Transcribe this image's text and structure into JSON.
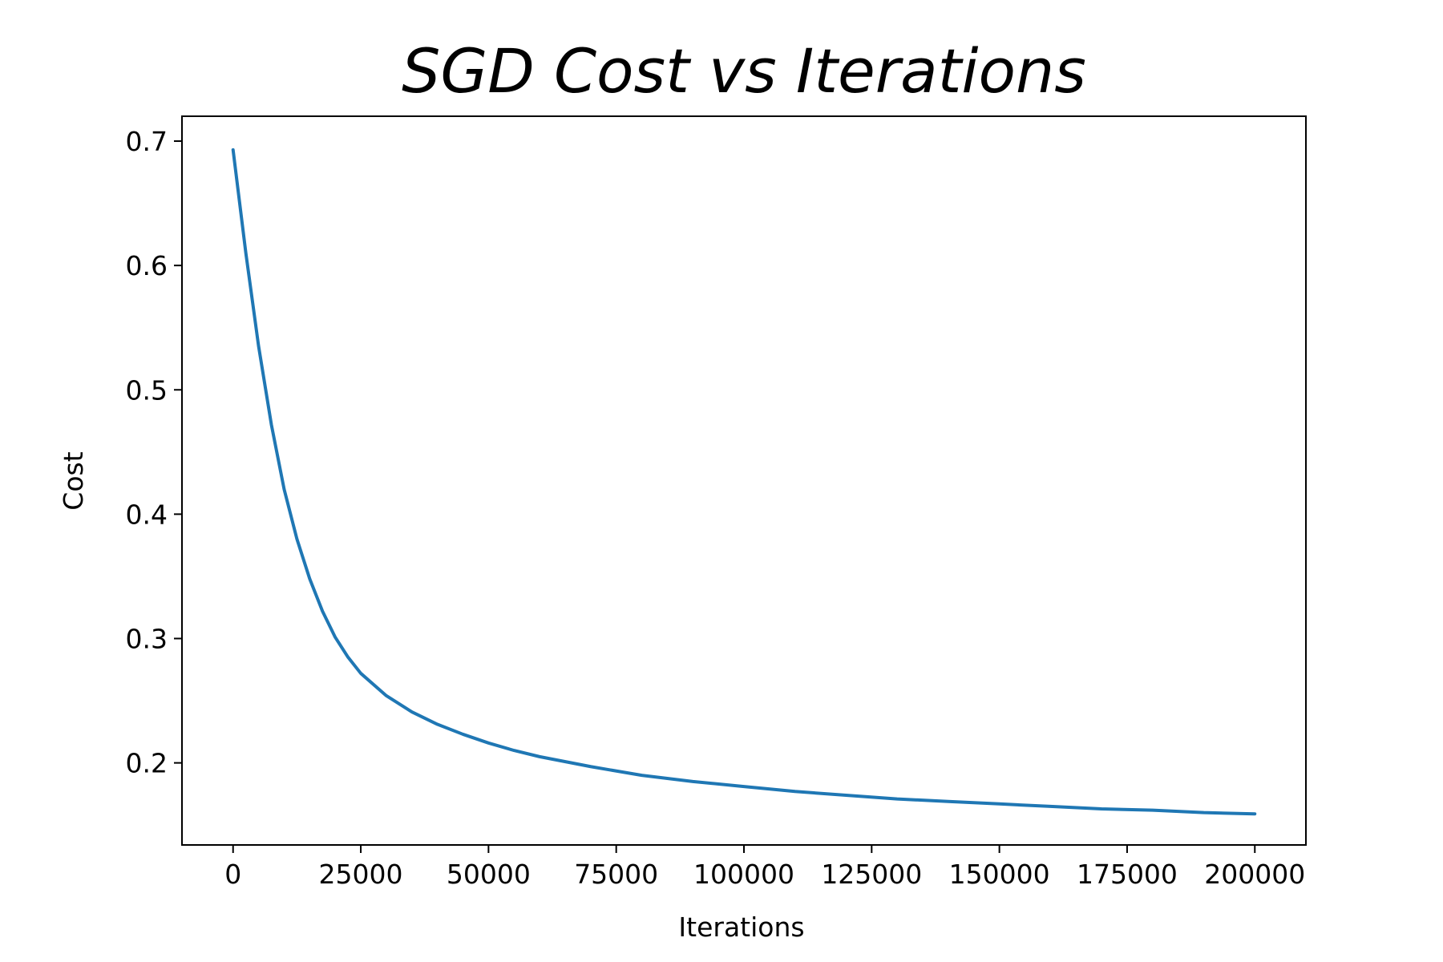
{
  "chart_data": {
    "type": "line",
    "title": "SGD Cost vs Iterations",
    "xlabel": "Iterations",
    "ylabel": "Cost",
    "xlim": [
      -10000,
      210000
    ],
    "ylim": [
      0.134,
      0.72
    ],
    "xticks": [
      0,
      25000,
      50000,
      75000,
      100000,
      125000,
      150000,
      175000,
      200000
    ],
    "xtick_labels": [
      "0",
      "25000",
      "50000",
      "75000",
      "100000",
      "125000",
      "150000",
      "175000",
      "200000"
    ],
    "yticks": [
      0.2,
      0.3,
      0.4,
      0.5,
      0.6,
      0.7
    ],
    "ytick_labels": [
      "0.2",
      "0.3",
      "0.4",
      "0.5",
      "0.6",
      "0.7"
    ],
    "grid": false,
    "legend": "none",
    "series": [
      {
        "color": "#1f77b4",
        "x": [
          0,
          2500,
          5000,
          7500,
          10000,
          12500,
          15000,
          17500,
          20000,
          22500,
          25000,
          30000,
          35000,
          40000,
          45000,
          50000,
          55000,
          60000,
          70000,
          80000,
          90000,
          100000,
          110000,
          120000,
          130000,
          140000,
          150000,
          160000,
          170000,
          180000,
          190000,
          200000
        ],
        "values": [
          0.693,
          0.61,
          0.535,
          0.472,
          0.42,
          0.38,
          0.348,
          0.322,
          0.301,
          0.285,
          0.272,
          0.254,
          0.241,
          0.231,
          0.223,
          0.216,
          0.21,
          0.205,
          0.197,
          0.19,
          0.185,
          0.181,
          0.177,
          0.174,
          0.171,
          0.169,
          0.167,
          0.165,
          0.163,
          0.162,
          0.16,
          0.159
        ]
      }
    ]
  }
}
